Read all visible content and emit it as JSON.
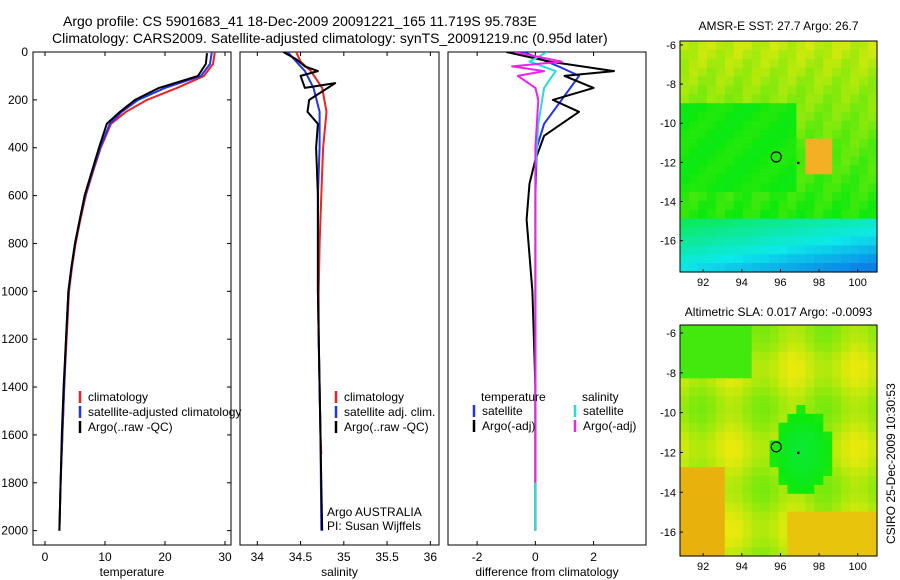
{
  "header": {
    "line1": "Argo profile: CS 5901683_41 18-Dec-2009 20091221_165 11.719S 95.783E",
    "line2": "Climatology: CARS2009. Satellite-adjusted climatology: synTS_20091219.nc (0.95d later)"
  },
  "footer_stamp": "CSIRO 25-Dec-2009 10:30:53",
  "chart_data": [
    {
      "type": "line",
      "id": "temperature",
      "xlabel": "temperature",
      "ylabel": "",
      "xlim": [
        -2,
        31
      ],
      "ylim": [
        2060,
        0
      ],
      "xticks": [
        0,
        10,
        20,
        30
      ],
      "yticks": [
        0,
        200,
        400,
        600,
        800,
        1000,
        1200,
        1400,
        1600,
        1800,
        2000
      ],
      "legend": [
        "climatology",
        "satellite-adjusted climatology",
        "Argo(..raw -QC)"
      ],
      "series": [
        {
          "name": "climatology",
          "color": "#ee2222",
          "x": [
            28.3,
            28.0,
            26.5,
            22.0,
            17.0,
            13.5,
            11.0,
            9.3,
            8.0,
            6.8,
            5.9,
            5.1,
            4.5,
            4.0,
            3.6,
            3.2,
            2.9,
            2.6,
            2.4
          ],
          "y": [
            0,
            50,
            100,
            150,
            200,
            250,
            300,
            400,
            500,
            600,
            700,
            800,
            900,
            1000,
            1200,
            1400,
            1600,
            1800,
            2000
          ]
        },
        {
          "name": "satellite-adjusted climatology",
          "color": "#2233ee",
          "x": [
            27.8,
            27.5,
            26.0,
            20.0,
            15.5,
            12.8,
            10.8,
            9.2,
            7.9,
            6.7,
            5.8,
            5.0,
            4.4,
            3.9,
            3.5,
            3.2,
            2.9,
            2.6,
            2.4
          ],
          "y": [
            0,
            50,
            100,
            150,
            200,
            250,
            300,
            400,
            500,
            600,
            700,
            800,
            900,
            1000,
            1200,
            1400,
            1600,
            1800,
            2000
          ]
        },
        {
          "name": "Argo(..raw -QC)",
          "color": "#000000",
          "x": [
            27.0,
            26.8,
            25.5,
            19.0,
            15.0,
            12.5,
            10.3,
            9.0,
            7.8,
            6.6,
            5.8,
            5.0,
            4.4,
            3.9,
            3.5,
            3.1,
            2.8,
            2.6,
            2.4
          ],
          "y": [
            5,
            50,
            100,
            150,
            200,
            250,
            300,
            400,
            500,
            600,
            700,
            800,
            900,
            1000,
            1200,
            1400,
            1600,
            1800,
            2000
          ]
        }
      ]
    },
    {
      "type": "line",
      "id": "salinity",
      "xlabel": "salinity",
      "ylabel": "",
      "xlim": [
        33.8,
        36.1
      ],
      "ylim": [
        2060,
        0
      ],
      "xticks": [
        34,
        34.5,
        35,
        35.5,
        36
      ],
      "yticks": [],
      "legend": [
        "climatology",
        "satellite adj. clim.",
        "Argo(..raw -QC)"
      ],
      "annotation": [
        "Argo AUSTRALIA",
        "PI: Susan Wijffels"
      ],
      "series": [
        {
          "name": "climatology",
          "color": "#ee2222",
          "x": [
            34.45,
            34.5,
            34.62,
            34.75,
            34.8,
            34.76,
            34.74,
            34.72,
            34.71,
            34.71,
            34.72,
            34.73,
            34.74
          ],
          "y": [
            0,
            40,
            80,
            150,
            250,
            400,
            600,
            800,
            1000,
            1200,
            1400,
            1600,
            1680
          ]
        },
        {
          "name": "satellite adj. clim.",
          "color": "#2233ee",
          "x": [
            34.35,
            34.45,
            34.55,
            34.65,
            34.72,
            34.72,
            34.7,
            34.7,
            34.7,
            34.71,
            34.72,
            34.73,
            34.74
          ],
          "y": [
            0,
            40,
            80,
            150,
            250,
            400,
            600,
            800,
            1000,
            1200,
            1400,
            1600,
            2000
          ]
        },
        {
          "name": "Argo(..raw -QC)",
          "color": "#000000",
          "x": [
            34.3,
            34.45,
            34.55,
            34.7,
            34.5,
            34.55,
            34.9,
            34.6,
            34.58,
            34.7,
            34.68,
            34.7,
            34.7,
            34.7,
            34.72,
            34.74,
            34.75
          ],
          "y": [
            0,
            30,
            60,
            80,
            100,
            150,
            130,
            200,
            250,
            300,
            400,
            600,
            800,
            1000,
            1400,
            1800,
            2000
          ]
        }
      ]
    },
    {
      "type": "line",
      "id": "difference",
      "xlabel": "difference from climatology",
      "ylabel": "",
      "xlim": [
        -3,
        3.8
      ],
      "ylim": [
        2060,
        0
      ],
      "xticks": [
        -2,
        0,
        2
      ],
      "yticks": [],
      "legend_titles": [
        "temperature",
        "salinity"
      ],
      "legend": [
        "satellite",
        "Argo(-adj)",
        "satellite",
        "Argo(-adj)"
      ],
      "series": [
        {
          "name": "satellite",
          "group": "temperature",
          "color": "#2233ee",
          "x": [
            -0.4,
            0.2,
            0.8,
            1.5,
            0.9,
            0.3,
            0.05,
            0.0,
            0.0,
            0.0
          ],
          "y": [
            0,
            30,
            60,
            100,
            200,
            300,
            400,
            600,
            1000,
            2000
          ]
        },
        {
          "name": "Argo(-adj)",
          "group": "temperature",
          "color": "#000000",
          "x": [
            -1.0,
            0.5,
            2.7,
            1.0,
            2.0,
            0.6,
            1.5,
            0.3,
            0.0,
            -0.2,
            -0.3,
            -0.1,
            0.0,
            0.0,
            0.0
          ],
          "y": [
            0,
            40,
            80,
            100,
            150,
            200,
            250,
            350,
            450,
            550,
            700,
            1000,
            1400,
            1800,
            2000
          ]
        },
        {
          "name": "satellite",
          "group": "salinity",
          "color": "#22dddd",
          "x": [
            0.4,
            -0.2,
            0.7,
            0.3,
            0.1,
            0.0,
            0.0,
            0.0
          ],
          "y": [
            0,
            40,
            80,
            150,
            300,
            500,
            1000,
            2000
          ]
        },
        {
          "name": "Argo(-adj)",
          "group": "salinity",
          "color": "#ee22ee",
          "x": [
            -0.7,
            0.1,
            0.9,
            -0.8,
            0.3,
            -0.6,
            0.0,
            0.1,
            0.0,
            0.0
          ],
          "y": [
            0,
            20,
            40,
            60,
            80,
            100,
            150,
            200,
            400,
            1800
          ]
        }
      ]
    },
    {
      "type": "heatmap",
      "id": "amsre-sst",
      "title": "AMSR-E SST: 27.7 Argo: 26.7",
      "xlim": [
        90.8,
        101.0
      ],
      "ylim": [
        -17.6,
        -5.8
      ],
      "xticks": [
        92,
        94,
        96,
        98,
        100
      ],
      "yticks": [
        -6,
        -8,
        -10,
        -12,
        -14,
        -16
      ],
      "argo_position": {
        "lon": 95.783,
        "lat": -11.719
      }
    },
    {
      "type": "heatmap",
      "id": "altimetric-sla",
      "title": "Altimetric SLA: 0.017 Argo: -0.0093",
      "xlim": [
        90.8,
        101.0
      ],
      "ylim": [
        -17.2,
        -5.6
      ],
      "xticks": [
        92,
        94,
        96,
        98,
        100
      ],
      "yticks": [
        -6,
        -8,
        -10,
        -12,
        -14,
        -16
      ],
      "argo_position": {
        "lon": 95.783,
        "lat": -11.719
      }
    }
  ]
}
